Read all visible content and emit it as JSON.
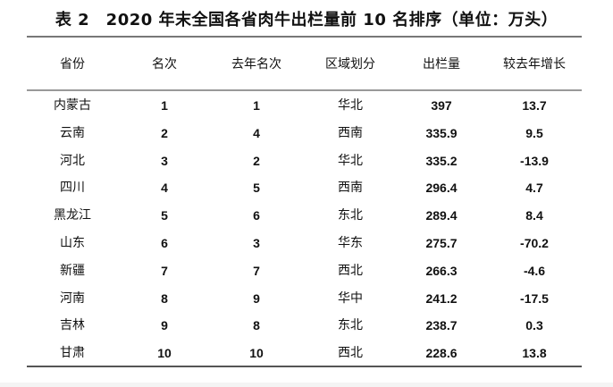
{
  "title": "表 2　2020 年末全国各省肉牛出栏量前 10 名排序（单位：万头）",
  "table": {
    "headers": [
      "省份",
      "名次",
      "去年名次",
      "区域划分",
      "出栏量",
      "较去年增长"
    ],
    "rows": [
      [
        "内蒙古",
        "1",
        "1",
        "华北",
        "397",
        "13.7"
      ],
      [
        "云南",
        "2",
        "4",
        "西南",
        "335.9",
        "9.5"
      ],
      [
        "河北",
        "3",
        "2",
        "华北",
        "335.2",
        "-13.9"
      ],
      [
        "四川",
        "4",
        "5",
        "西南",
        "296.4",
        "4.7"
      ],
      [
        "黑龙江",
        "5",
        "6",
        "东北",
        "289.4",
        "8.4"
      ],
      [
        "山东",
        "6",
        "3",
        "华东",
        "275.7",
        "-70.2"
      ],
      [
        "新疆",
        "7",
        "7",
        "西北",
        "266.3",
        "-4.6"
      ],
      [
        "河南",
        "8",
        "9",
        "华中",
        "241.2",
        "-17.5"
      ],
      [
        "吉林",
        "9",
        "8",
        "东北",
        "238.7",
        "0.3"
      ],
      [
        "甘肃",
        "10",
        "10",
        "西北",
        "228.6",
        "13.8"
      ]
    ]
  }
}
